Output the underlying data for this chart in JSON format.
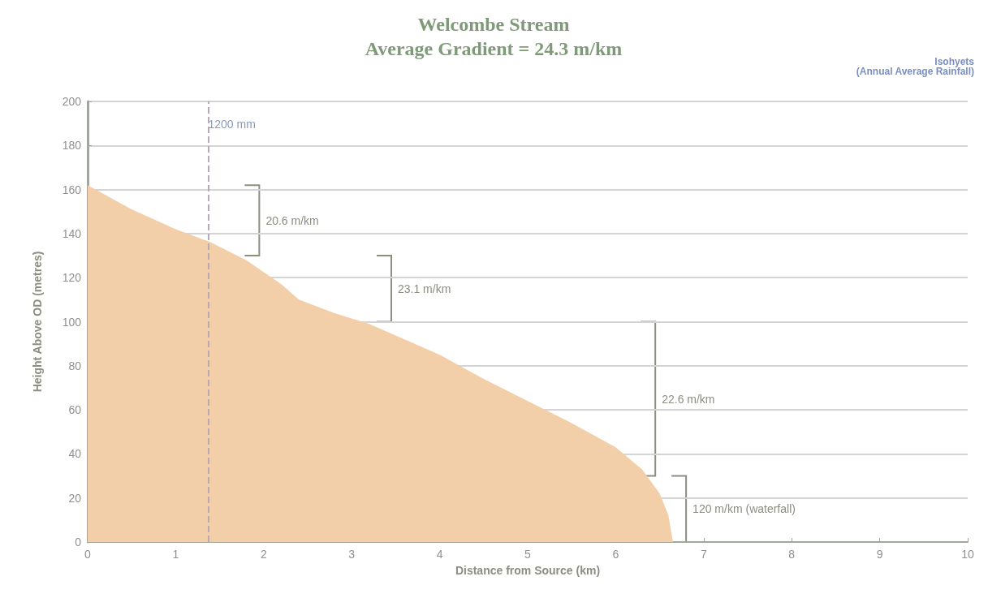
{
  "chart_data": {
    "type": "area",
    "title": "Welcombe Stream",
    "subtitle": "Average Gradient = 24.3 m/km",
    "xlabel": "Distance from Source (km)",
    "ylabel": "Height Above OD (metres)",
    "series": [
      {
        "color": "#f2cfa8",
        "x": [
          0,
          0.5,
          1,
          1.4,
          1.8,
          2.2,
          2.4,
          2.8,
          3.2,
          3.6,
          4,
          4.5,
          5,
          5.5,
          6,
          6.3,
          6.5,
          6.6,
          6.65
        ],
        "values": [
          162,
          151,
          142,
          136,
          128,
          117,
          110,
          104,
          99,
          92,
          85,
          74,
          64,
          54,
          43,
          33,
          22,
          12,
          0
        ]
      }
    ],
    "xlim": [
      0,
      10
    ],
    "xticks": [
      0,
      1,
      2,
      3,
      4,
      5,
      6,
      7,
      8,
      9,
      10
    ],
    "ylim": [
      0,
      200
    ],
    "yticks": [
      0,
      20,
      40,
      60,
      80,
      100,
      120,
      140,
      160,
      180,
      200
    ],
    "grid": "y",
    "marker": "none",
    "ref_lines": [
      {
        "axis": "x",
        "value": 1.37,
        "label": "1200 mm",
        "color": "#b8a8b8",
        "line_style": "dashed"
      }
    ],
    "annotations": [
      "20.6 m/km",
      "23.1 m/km",
      "22.6 m/km",
      "120 m/km (waterfall)",
      "Isohyets\n(Annual Average Rainfall)"
    ]
  }
}
